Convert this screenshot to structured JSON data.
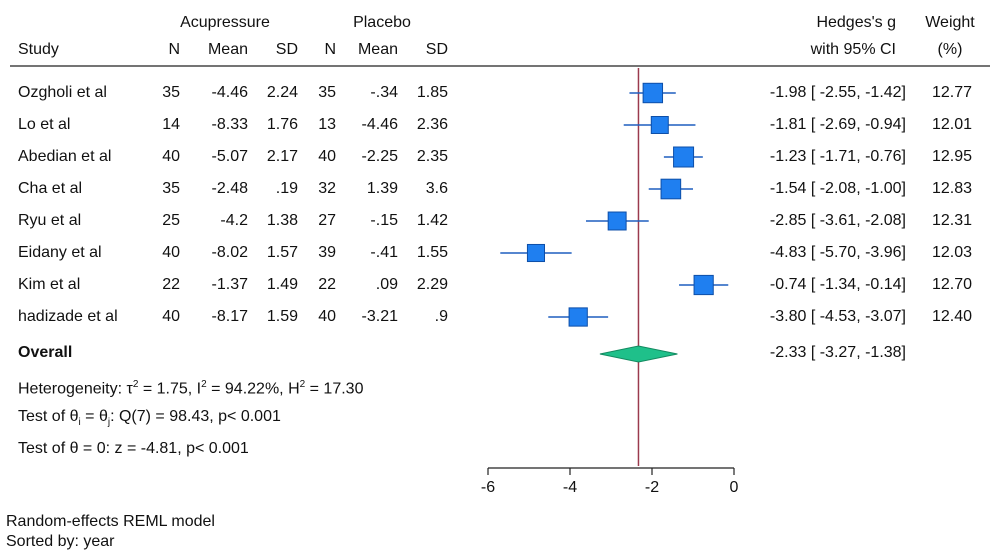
{
  "header": {
    "group1": "Acupressure",
    "group2": "Placebo",
    "study": "Study",
    "n1": "N",
    "mean1": "Mean",
    "sd1": "SD",
    "n2": "N",
    "mean2": "Mean",
    "sd2": "SD",
    "effect_line1": "Hedges's g",
    "effect_line2": "with 95% CI",
    "weight_line1": "Weight",
    "weight_line2": "(%)"
  },
  "studies": [
    {
      "name": "Ozgholi et al",
      "n1": "35",
      "mean1": "-4.46",
      "sd1": "2.24",
      "n2": "35",
      "mean2": "-.34",
      "sd2": "1.85",
      "ci_text": "-1.98 [ -2.55,  -1.42]",
      "weight": "12.77"
    },
    {
      "name": "Lo et al",
      "n1": "14",
      "mean1": "-8.33",
      "sd1": "1.76",
      "n2": "13",
      "mean2": "-4.46",
      "sd2": "2.36",
      "ci_text": "-1.81 [ -2.69,  -0.94]",
      "weight": "12.01"
    },
    {
      "name": "Abedian et al",
      "n1": "40",
      "mean1": "-5.07",
      "sd1": "2.17",
      "n2": "40",
      "mean2": "-2.25",
      "sd2": "2.35",
      "ci_text": "-1.23 [ -1.71,  -0.76]",
      "weight": "12.95"
    },
    {
      "name": "Cha et al",
      "n1": "35",
      "mean1": "-2.48",
      "sd1": ".19",
      "n2": "32",
      "mean2": "1.39",
      "sd2": "3.6",
      "ci_text": "-1.54 [ -2.08,  -1.00]",
      "weight": "12.83"
    },
    {
      "name": "Ryu  et al",
      "n1": "25",
      "mean1": "-4.2",
      "sd1": "1.38",
      "n2": "27",
      "mean2": "-.15",
      "sd2": "1.42",
      "ci_text": "-2.85 [ -3.61,  -2.08]",
      "weight": "12.31"
    },
    {
      "name": "Eidany et al",
      "n1": "40",
      "mean1": "-8.02",
      "sd1": "1.57",
      "n2": "39",
      "mean2": "-.41",
      "sd2": "1.55",
      "ci_text": "-4.83 [ -5.70,  -3.96]",
      "weight": "12.03"
    },
    {
      "name": "Kim et al",
      "n1": "22",
      "mean1": "-1.37",
      "sd1": "1.49",
      "n2": "22",
      "mean2": ".09",
      "sd2": "2.29",
      "ci_text": "-0.74 [ -1.34,  -0.14]",
      "weight": "12.70"
    },
    {
      "name": "hadizade et al",
      "n1": "40",
      "mean1": "-8.17",
      "sd1": "1.59",
      "n2": "40",
      "mean2": "-3.21",
      "sd2": ".9",
      "ci_text": "-3.80 [ -4.53,  -3.07]",
      "weight": "12.40"
    }
  ],
  "overall": {
    "label": "Overall",
    "ci_text": "-2.33 [ -3.27,  -1.38]"
  },
  "stats": {
    "heterogeneity": {
      "prefix": "Heterogeneity: τ",
      "s1": "2",
      "mid1": " = 1.75, I",
      "s2": "2",
      "mid2": " = 94.22%, H",
      "s3": "2",
      "end": " = 17.30"
    },
    "test_equal": {
      "prefix": "Test of θ",
      "sub1": "i",
      "mid": " = θ",
      "sub2": "j",
      "end": ": Q(7) = 98.43, p< 0.001"
    },
    "test_zero": "Test of θ = 0: z = -4.81, p< 0.001"
  },
  "footer": {
    "model": "Random-effects REML model",
    "sorted": "Sorted by: year"
  },
  "colors": {
    "marker": "#1f7ff0",
    "marker_border": "#0e4fa8",
    "ci_line": "#1f5fbf",
    "diamond": "#1fc08a",
    "diamond_border": "#138a60",
    "overall_line": "#9b3a4e",
    "axis": "#222222"
  },
  "chart_data": {
    "type": "forest",
    "xlim": [
      -6,
      0
    ],
    "xticks": [
      -6,
      -4,
      -2,
      0
    ],
    "xtick_labels": [
      "-6",
      "-4",
      "-2",
      "0"
    ],
    "estimates": [
      {
        "study": "Ozgholi et al",
        "g": -1.98,
        "lo": -2.55,
        "hi": -1.42,
        "weight": 12.77
      },
      {
        "study": "Lo et al",
        "g": -1.81,
        "lo": -2.69,
        "hi": -0.94,
        "weight": 12.01
      },
      {
        "study": "Abedian et al",
        "g": -1.23,
        "lo": -1.71,
        "hi": -0.76,
        "weight": 12.95
      },
      {
        "study": "Cha et al",
        "g": -1.54,
        "lo": -2.08,
        "hi": -1.0,
        "weight": 12.83
      },
      {
        "study": "Ryu  et al",
        "g": -2.85,
        "lo": -3.61,
        "hi": -2.08,
        "weight": 12.31
      },
      {
        "study": "Eidany et al",
        "g": -4.83,
        "lo": -5.7,
        "hi": -3.96,
        "weight": 12.03
      },
      {
        "study": "Kim et al",
        "g": -0.74,
        "lo": -1.34,
        "hi": -0.14,
        "weight": 12.7
      },
      {
        "study": "hadizade et al",
        "g": -3.8,
        "lo": -4.53,
        "hi": -3.07,
        "weight": 12.4
      }
    ],
    "overall": {
      "g": -2.33,
      "lo": -3.27,
      "hi": -1.38
    }
  }
}
